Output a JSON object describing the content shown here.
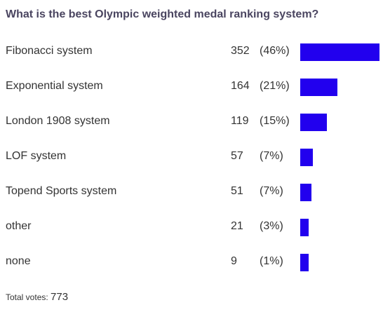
{
  "poll": {
    "question": "What is the best Olympic weighted medal ranking system?",
    "bar_color": "#2200ee",
    "options": [
      {
        "label": "Fibonacci system",
        "votes": "352",
        "percent": "(46%)",
        "share": 1.0
      },
      {
        "label": "Exponential system",
        "votes": "164",
        "percent": "(21%)",
        "share": 0.466
      },
      {
        "label": "London 1908 system",
        "votes": "119",
        "percent": "(15%)",
        "share": 0.338
      },
      {
        "label": "LOF system",
        "votes": "57",
        "percent": "(7%)",
        "share": 0.162
      },
      {
        "label": "Topend Sports system",
        "votes": "51",
        "percent": "(7%)",
        "share": 0.145
      },
      {
        "label": "other",
        "votes": "21",
        "percent": "(3%)",
        "share": 0.06
      },
      {
        "label": "none",
        "votes": "9",
        "percent": "(1%)",
        "share": 0.026
      }
    ],
    "total_label": "Total votes:",
    "total_count": "773"
  }
}
